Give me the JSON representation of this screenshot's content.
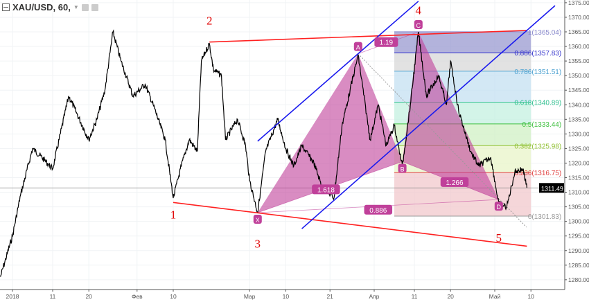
{
  "header": {
    "symbol": "XAU/USD, 60,",
    "collapse_icon": "minus-box-icon",
    "dropdown_icon": "chevron-down-icon",
    "buttons": [
      "eye-icon",
      "gear-icon"
    ]
  },
  "chart_data": {
    "type": "line",
    "y_axis": {
      "ticks": [
        1375,
        1370,
        1365,
        1360,
        1355,
        1350,
        1345,
        1340,
        1335,
        1330,
        1325,
        1320,
        1315,
        1310,
        1305,
        1300,
        1295,
        1290,
        1285,
        1280
      ],
      "range": [
        1277,
        1377
      ],
      "side": "right"
    },
    "x_axis": {
      "ticks": [
        {
          "date": "2018-01-01",
          "label": "2018"
        },
        {
          "date": "2018-01-11",
          "label": "11"
        },
        {
          "date": "2018-01-20",
          "label": "20"
        },
        {
          "date": "2018-02-01",
          "label": "Фев"
        },
        {
          "date": "2018-02-10",
          "label": "10"
        },
        {
          "date": "2018-03-01",
          "label": "Мар"
        },
        {
          "date": "2018-03-10",
          "label": "10"
        },
        {
          "date": "2018-03-21",
          "label": "21"
        },
        {
          "date": "2018-04-01",
          "label": "Апр"
        },
        {
          "date": "2018-04-11",
          "label": "11"
        },
        {
          "date": "2018-04-20",
          "label": "20"
        },
        {
          "date": "2018-05-01",
          "label": "Май"
        },
        {
          "date": "2018-05-10",
          "label": "10"
        }
      ]
    },
    "last_price": {
      "value": "1311.49",
      "color": "#000000"
    },
    "series": [
      {
        "x": [
          "2017-12-29",
          "2018-01-01",
          "2018-01-03",
          "2018-01-06",
          "2018-01-09",
          "2018-01-11",
          "2018-01-15",
          "2018-01-17",
          "2018-01-20",
          "2018-01-22",
          "2018-01-24",
          "2018-01-26",
          "2018-01-28",
          "2018-01-31",
          "2018-02-03",
          "2018-02-05",
          "2018-02-08",
          "2018-02-10",
          "2018-02-12",
          "2018-02-14",
          "2018-02-16",
          "2018-02-17",
          "2018-02-19",
          "2018-02-20",
          "2018-02-22",
          "2018-02-23",
          "2018-02-26",
          "2018-02-28",
          "2018-03-01",
          "2018-03-03",
          "2018-03-05",
          "2018-03-08",
          "2018-03-10",
          "2018-03-12",
          "2018-03-14",
          "2018-03-17",
          "2018-03-19",
          "2018-03-22",
          "2018-03-24",
          "2018-03-26",
          "2018-03-28",
          "2018-03-31",
          "2018-04-02",
          "2018-04-04",
          "2018-04-06",
          "2018-04-08",
          "2018-04-10",
          "2018-04-12",
          "2018-04-14",
          "2018-04-17",
          "2018-04-19",
          "2018-04-20",
          "2018-04-22",
          "2018-04-25",
          "2018-04-27",
          "2018-04-30",
          "2018-05-02",
          "2018-05-04",
          "2018-05-06",
          "2018-05-08",
          "2018-05-09"
        ],
        "y": [
          1281,
          1295,
          1309,
          1325,
          1321,
          1318,
          1343,
          1337,
          1328,
          1335,
          1345,
          1365,
          1355,
          1343,
          1347,
          1340,
          1328,
          1308,
          1319,
          1328,
          1324,
          1355,
          1361,
          1352,
          1350,
          1328,
          1335,
          1326,
          1314,
          1303,
          1324,
          1335,
          1325,
          1319,
          1326,
          1320,
          1312,
          1308,
          1333,
          1345,
          1357,
          1328,
          1340,
          1326,
          1333,
          1319,
          1340,
          1365,
          1343,
          1350,
          1340,
          1355,
          1338,
          1324,
          1319,
          1322,
          1306,
          1305,
          1317,
          1318,
          1311.5
        ],
        "color": "#000000"
      }
    ],
    "fibonacci": {
      "start": "2018-04-06",
      "end": "2018-05-10",
      "levels": [
        {
          "ratio": "1",
          "price": "1365.04",
          "label": "1(1365.04)",
          "color": "#8888cc",
          "fill": "#9a9ad0"
        },
        {
          "ratio": "0.886",
          "price": "1357.83",
          "label": "0.886(1357.83)",
          "color": "#3333cc",
          "fill": "#d8d8d8"
        },
        {
          "ratio": "0.786",
          "price": "1351.51",
          "label": "0.786(1351.51)",
          "color": "#4aa0d0",
          "fill": "#c4e0f2"
        },
        {
          "ratio": "0.618",
          "price": "1340.89",
          "label": "0.618(1340.89)",
          "color": "#30c090",
          "fill": "#c4f0e0"
        },
        {
          "ratio": "0.5",
          "price": "1333.44",
          "label": "0.5(1333.44)",
          "color": "#40c040",
          "fill": "#d0f0c4"
        },
        {
          "ratio": "0.382",
          "price": "1325.98",
          "label": "0.382(1325.98)",
          "color": "#90c030",
          "fill": "#e8f4c8"
        },
        {
          "ratio": "0.236",
          "price": "1316.75",
          "label": "0.236(1316.75)",
          "color": "#e04040",
          "fill": "#f2c8cc"
        },
        {
          "ratio": "0",
          "price": "1301.83",
          "label": "0(1301.83)",
          "color": "#999999",
          "fill": ""
        }
      ]
    },
    "pattern": {
      "color": "#c0409a",
      "points": [
        {
          "label": "X",
          "date": "2018-03-03",
          "price": 1303
        },
        {
          "label": "A",
          "date": "2018-03-28",
          "price": 1357.5
        },
        {
          "label": "B",
          "date": "2018-04-08",
          "price": 1320.5
        },
        {
          "label": "C",
          "date": "2018-04-12",
          "price": 1365
        },
        {
          "label": "D",
          "date": "2018-05-02",
          "price": 1307.5
        }
      ],
      "ratios": [
        {
          "label": "1.618",
          "date": "2018-03-20",
          "price": 1311
        },
        {
          "label": "1.19",
          "date": "2018-04-04",
          "price": 1361.5
        },
        {
          "label": "0.886",
          "date": "2018-04-02",
          "price": 1304
        },
        {
          "label": "1.266",
          "date": "2018-04-21",
          "price": 1313.5
        }
      ]
    },
    "trend_lines": [
      {
        "color": "#ff2020",
        "from": {
          "date": "2018-02-19",
          "price": 1361.5
        },
        "to": {
          "date": "2018-05-09",
          "price": 1365.5
        }
      },
      {
        "color": "#ff2020",
        "from": {
          "date": "2018-02-10",
          "price": 1306.5
        },
        "to": {
          "date": "2018-05-09",
          "price": 1291.5
        }
      },
      {
        "color": "#1a1aee",
        "from": {
          "date": "2018-03-03",
          "price": 1327.5
        },
        "to": {
          "date": "2018-04-12",
          "price": 1375.5
        }
      },
      {
        "color": "#1a1aee",
        "from": {
          "date": "2018-03-14",
          "price": 1297.5
        },
        "to": {
          "date": "2018-05-16",
          "price": 1374
        }
      }
    ],
    "wave_labels": [
      {
        "label": "1",
        "date": "2018-02-10",
        "price": 1301
      },
      {
        "label": "2",
        "date": "2018-02-19",
        "price": 1367.5
      },
      {
        "label": "3",
        "date": "2018-03-03",
        "price": 1291
      },
      {
        "label": "4",
        "date": "2018-04-12",
        "price": 1371
      },
      {
        "label": "5",
        "date": "2018-05-02",
        "price": 1293
      }
    ]
  }
}
